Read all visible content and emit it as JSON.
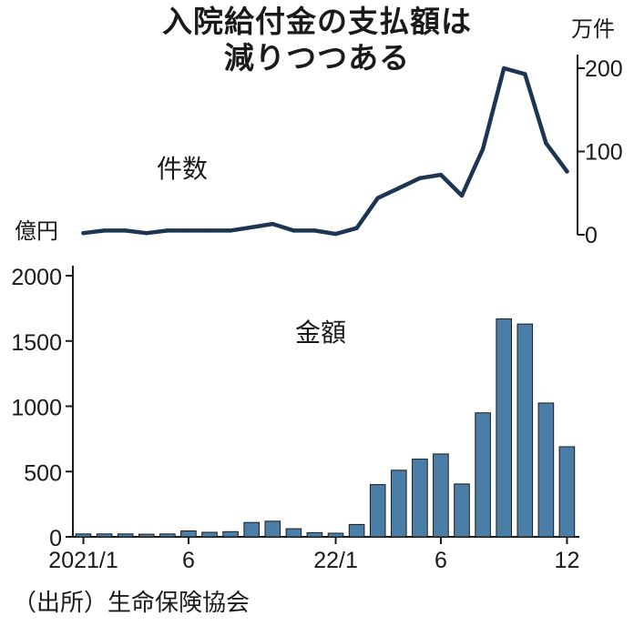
{
  "title_line1": "入院給付金の支払額は",
  "title_line2": "減りつつある",
  "source": "（出所）生命保険協会",
  "colors": {
    "line": "#1c3553",
    "bar": "#4a7ea6",
    "bar_edge": "#1a1a1a",
    "axis": "#1a1a1a"
  },
  "chart_data": [
    {
      "type": "line",
      "series_label": "件数",
      "ylabel": "万件",
      "ylim": [
        0,
        200
      ],
      "yticks": [
        0,
        100,
        200
      ],
      "ytick_labels": [
        "0",
        "100",
        "200"
      ],
      "x": [
        "2021/1",
        "2021/2",
        "2021/3",
        "2021/4",
        "2021/5",
        "2021/6",
        "2021/7",
        "2021/8",
        "2021/9",
        "2021/10",
        "2021/11",
        "2021/12",
        "2022/1",
        "2022/2",
        "2022/3",
        "2022/4",
        "2022/5",
        "2022/6",
        "2022/7",
        "2022/8",
        "2022/9",
        "2022/10",
        "2022/11",
        "2022/12"
      ],
      "values": [
        2,
        5,
        5,
        2,
        5,
        5,
        5,
        5,
        9,
        13,
        5,
        5,
        1,
        8,
        44,
        56,
        68,
        72,
        47,
        103,
        200,
        193,
        110,
        76
      ]
    },
    {
      "type": "bar",
      "series_label": "金額",
      "ylabel": "億円",
      "ylim": [
        0,
        2000
      ],
      "yticks": [
        0,
        500,
        1000,
        1500,
        2000
      ],
      "ytick_labels": [
        "0",
        "500",
        "1000",
        "1500",
        "2000"
      ],
      "x": [
        "2021/1",
        "2021/2",
        "2021/3",
        "2021/4",
        "2021/5",
        "2021/6",
        "2021/7",
        "2021/8",
        "2021/9",
        "2021/10",
        "2021/11",
        "2021/12",
        "2022/1",
        "2022/2",
        "2022/3",
        "2022/4",
        "2022/5",
        "2022/6",
        "2022/7",
        "2022/8",
        "2022/9",
        "2022/10",
        "2022/11",
        "2022/12"
      ],
      "values": [
        22,
        22,
        22,
        20,
        22,
        45,
        35,
        40,
        110,
        120,
        62,
        32,
        28,
        95,
        400,
        510,
        595,
        635,
        405,
        950,
        1670,
        1630,
        1025,
        690
      ],
      "xtick_labels": [
        {
          "text": "2021/1",
          "index": 0
        },
        {
          "text": "6",
          "index": 5
        },
        {
          "text": "22/1",
          "index": 12
        },
        {
          "text": "6",
          "index": 17
        },
        {
          "text": "12",
          "index": 23
        }
      ]
    }
  ]
}
